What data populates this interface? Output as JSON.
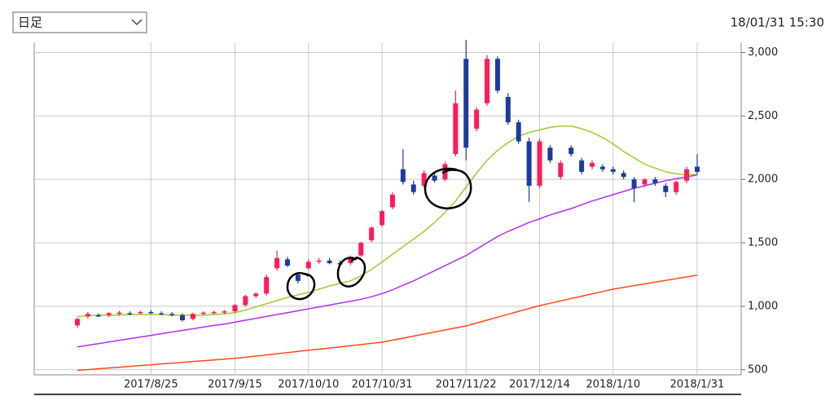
{
  "header": {
    "period_select": "日足",
    "timestamp": "18/01/31 15:30"
  },
  "chart_data": {
    "type": "candlestick",
    "categories": [
      null,
      null,
      null,
      null,
      null,
      null,
      null,
      "2017/8/25",
      null,
      null,
      null,
      null,
      null,
      null,
      null,
      "2017/9/15",
      null,
      null,
      null,
      null,
      null,
      null,
      "2017/10/10",
      null,
      null,
      null,
      null,
      null,
      null,
      "2017/10/31",
      null,
      null,
      null,
      null,
      null,
      null,
      null,
      "2017/11/22",
      null,
      null,
      null,
      null,
      null,
      null,
      "2017/12/14",
      null,
      null,
      null,
      null,
      null,
      null,
      "2018/1/10",
      null,
      null,
      null,
      null,
      null,
      null,
      null,
      "2018/1/31"
    ],
    "open": [
      850,
      920,
      930,
      930,
      940,
      945,
      950,
      955,
      945,
      940,
      930,
      900,
      945,
      950,
      955,
      960,
      1010,
      1080,
      1100,
      1300,
      1370,
      1250,
      1300,
      1350,
      1360,
      1340,
      1340,
      1400,
      1520,
      1640,
      1780,
      2080,
      1960,
      1950,
      2030,
      2000,
      2200,
      2950,
      2400,
      2600,
      2950,
      2650,
      2450,
      2300,
      1950,
      2250,
      2020,
      2250,
      2150,
      2100,
      2100,
      2080,
      2050,
      2000,
      1960,
      2000,
      1950,
      1900,
      1990,
      2100
    ],
    "high": [
      910,
      955,
      945,
      955,
      965,
      960,
      965,
      970,
      960,
      955,
      945,
      950,
      960,
      965,
      970,
      1020,
      1090,
      1110,
      1250,
      1440,
      1390,
      1270,
      1370,
      1380,
      1380,
      1360,
      1400,
      1510,
      1630,
      1760,
      1900,
      2240,
      1990,
      2070,
      2050,
      2140,
      2700,
      3100,
      2570,
      2980,
      2970,
      2680,
      2470,
      2330,
      2320,
      2270,
      2150,
      2270,
      2170,
      2150,
      2120,
      2100,
      2070,
      2020,
      2010,
      2020,
      1970,
      1990,
      2100,
      2200
    ],
    "low": [
      830,
      905,
      915,
      915,
      925,
      930,
      935,
      940,
      930,
      920,
      880,
      890,
      930,
      935,
      940,
      945,
      995,
      1065,
      1085,
      1280,
      1310,
      1180,
      1285,
      1335,
      1330,
      1320,
      1325,
      1390,
      1505,
      1625,
      1765,
      1960,
      1880,
      1935,
      1975,
      1985,
      2180,
      2150,
      2380,
      2580,
      2680,
      2430,
      2280,
      1820,
      1930,
      2130,
      2000,
      2180,
      2040,
      2080,
      2060,
      2040,
      2000,
      1820,
      1940,
      1950,
      1860,
      1880,
      1970,
      2040
    ],
    "close": [
      900,
      940,
      920,
      945,
      950,
      940,
      955,
      945,
      940,
      930,
      890,
      940,
      950,
      955,
      960,
      1010,
      1080,
      1100,
      1230,
      1380,
      1320,
      1200,
      1350,
      1360,
      1340,
      1330,
      1390,
      1500,
      1620,
      1750,
      1880,
      1980,
      1900,
      2050,
      1990,
      2120,
      2600,
      2250,
      2550,
      2950,
      2700,
      2450,
      2300,
      1950,
      2300,
      2150,
      2130,
      2200,
      2060,
      2130,
      2080,
      2060,
      2020,
      1930,
      2000,
      1970,
      1900,
      1980,
      2080,
      2060
    ],
    "up_color": "#ff1a5a",
    "down_color": "#1c3c9c",
    "series": [
      {
        "color": "#9acd32",
        "values": [
          920,
          925,
          930,
          930,
          930,
          935,
          935,
          935,
          935,
          930,
          930,
          930,
          930,
          935,
          940,
          950,
          970,
          995,
          1020,
          1045,
          1070,
          1090,
          1110,
          1135,
          1160,
          1180,
          1200,
          1240,
          1290,
          1350,
          1410,
          1470,
          1530,
          1590,
          1660,
          1740,
          1830,
          1940,
          2050,
          2150,
          2230,
          2290,
          2340,
          2370,
          2390,
          2410,
          2420,
          2420,
          2400,
          2370,
          2330,
          2280,
          2220,
          2170,
          2120,
          2090,
          2060,
          2045,
          2035,
          2040
        ]
      },
      {
        "color": "#b030f0",
        "values": [
          680,
          693,
          706,
          719,
          732,
          745,
          758,
          771,
          784,
          797,
          810,
          823,
          836,
          849,
          860,
          875,
          890,
          905,
          920,
          935,
          950,
          965,
          980,
          995,
          1010,
          1025,
          1040,
          1055,
          1075,
          1100,
          1130,
          1165,
          1200,
          1240,
          1280,
          1320,
          1360,
          1400,
          1450,
          1500,
          1550,
          1590,
          1625,
          1660,
          1690,
          1720,
          1745,
          1770,
          1800,
          1830,
          1855,
          1880,
          1905,
          1930,
          1950,
          1970,
          1990,
          2005,
          2020,
          2035
        ]
      },
      {
        "color": "#ff4a1a",
        "values": [
          495,
          501,
          508,
          514,
          520,
          527,
          533,
          539,
          546,
          552,
          558,
          565,
          571,
          577,
          584,
          590,
          599,
          608,
          617,
          626,
          635,
          644,
          653,
          662,
          671,
          680,
          689,
          698,
          708,
          717,
          733,
          749,
          765,
          781,
          797,
          813,
          829,
          845,
          868,
          891,
          914,
          937,
          960,
          983,
          1005,
          1024,
          1042,
          1061,
          1079,
          1098,
          1116,
          1135,
          1149,
          1163,
          1176,
          1190,
          1204,
          1218,
          1231,
          1245
        ]
      }
    ],
    "ylim": [
      460,
      3080
    ],
    "yticks": [
      500,
      {
        "value": 1000,
        "label": "1,000"
      },
      {
        "value": 1500,
        "label": "1,500"
      },
      {
        "value": 2000,
        "label": "2,000"
      },
      {
        "value": 2500,
        "label": "2,500"
      },
      {
        "value": 3000,
        "label": "3,000"
      }
    ],
    "grid": true
  }
}
